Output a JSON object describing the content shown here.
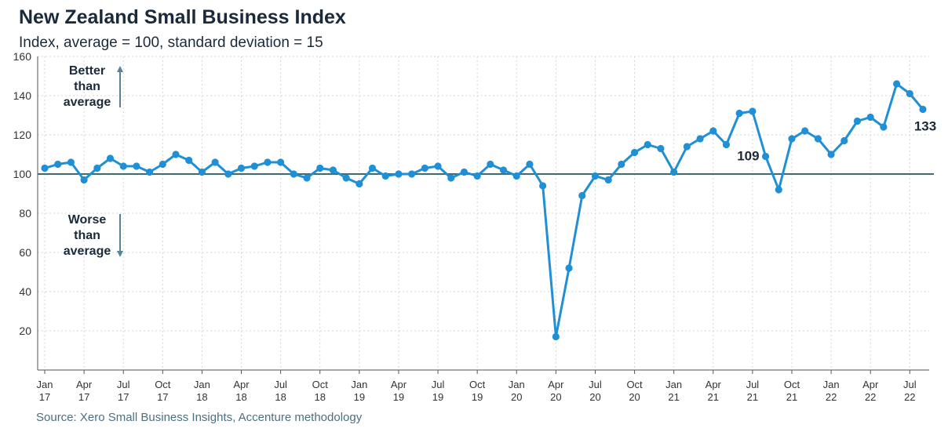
{
  "chart_data": {
    "type": "line",
    "title": "New Zealand Small Business Index",
    "subtitle": "Index, average = 100, standard deviation = 15",
    "source": "Source: Xero Small Business Insights, Accenture methodology",
    "ylim": [
      0,
      160
    ],
    "yticks": [
      20,
      40,
      60,
      80,
      100,
      120,
      140,
      160
    ],
    "grid": true,
    "reference_line": 100,
    "x_tick_labels": [
      [
        "Jan",
        "17"
      ],
      [
        "Apr",
        "17"
      ],
      [
        "Jul",
        "17"
      ],
      [
        "Oct",
        "17"
      ],
      [
        "Jan",
        "18"
      ],
      [
        "Apr",
        "18"
      ],
      [
        "Jul",
        "18"
      ],
      [
        "Oct",
        "18"
      ],
      [
        "Jan",
        "19"
      ],
      [
        "Apr",
        "19"
      ],
      [
        "Jul",
        "19"
      ],
      [
        "Oct",
        "19"
      ],
      [
        "Jan",
        "20"
      ],
      [
        "Apr",
        "20"
      ],
      [
        "Jul",
        "20"
      ],
      [
        "Oct",
        "20"
      ],
      [
        "Jan",
        "21"
      ],
      [
        "Apr",
        "21"
      ],
      [
        "Jul",
        "21"
      ],
      [
        "Oct",
        "21"
      ],
      [
        "Jan",
        "22"
      ],
      [
        "Apr",
        "22"
      ],
      [
        "Jul",
        "22"
      ]
    ],
    "x": [
      "2017-01",
      "2017-02",
      "2017-03",
      "2017-04",
      "2017-05",
      "2017-06",
      "2017-07",
      "2017-08",
      "2017-09",
      "2017-10",
      "2017-11",
      "2017-12",
      "2018-01",
      "2018-02",
      "2018-03",
      "2018-04",
      "2018-05",
      "2018-06",
      "2018-07",
      "2018-08",
      "2018-09",
      "2018-10",
      "2018-11",
      "2018-12",
      "2019-01",
      "2019-02",
      "2019-03",
      "2019-04",
      "2019-05",
      "2019-06",
      "2019-07",
      "2019-08",
      "2019-09",
      "2019-10",
      "2019-11",
      "2019-12",
      "2020-01",
      "2020-02",
      "2020-03",
      "2020-04",
      "2020-05",
      "2020-06",
      "2020-07",
      "2020-08",
      "2020-09",
      "2020-10",
      "2020-11",
      "2020-12",
      "2021-01",
      "2021-02",
      "2021-03",
      "2021-04",
      "2021-05",
      "2021-06",
      "2021-07",
      "2021-08",
      "2021-09",
      "2021-10",
      "2021-11",
      "2021-12",
      "2022-01",
      "2022-02",
      "2022-03",
      "2022-04",
      "2022-05",
      "2022-06",
      "2022-07",
      "2022-08"
    ],
    "values": [
      103,
      105,
      106,
      97,
      103,
      108,
      104,
      104,
      101,
      105,
      110,
      107,
      101,
      106,
      100,
      103,
      104,
      106,
      106,
      100,
      98,
      103,
      102,
      98,
      95,
      103,
      99,
      100,
      100,
      103,
      104,
      98,
      101,
      99,
      105,
      102,
      99,
      105,
      94,
      17,
      52,
      89,
      99,
      97,
      105,
      111,
      115,
      113,
      101,
      114,
      118,
      122,
      115,
      131,
      132,
      109,
      92,
      118,
      122,
      118,
      110,
      117,
      127,
      129,
      124,
      146,
      141,
      133
    ],
    "annotations": {
      "better": [
        "Better",
        "than",
        "average"
      ],
      "worse": [
        "Worse",
        "than",
        "average"
      ],
      "labels": [
        {
          "x": "2021-08",
          "text": "109"
        },
        {
          "x": "2022-08",
          "text": "133"
        }
      ]
    },
    "colors": {
      "line": "#1f8fd6",
      "reference": "#3e6a70",
      "arrow": "#5b8196",
      "grid": "#d6d6d6"
    }
  }
}
